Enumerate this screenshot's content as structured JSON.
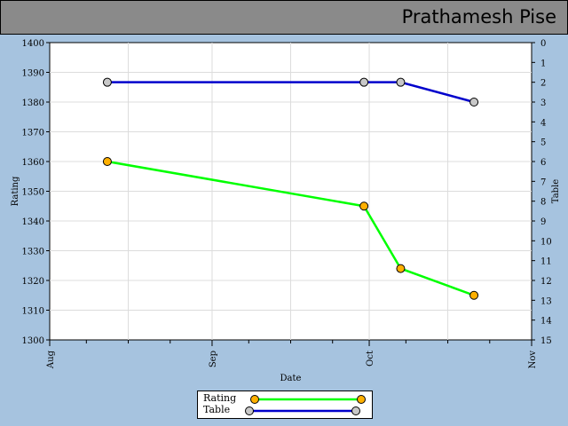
{
  "header": {
    "title": "Prathamesh Pise"
  },
  "chart_data": {
    "type": "line",
    "xlabel": "Date",
    "ylabel": "Rating",
    "y2label": "Table",
    "x_ticks": [
      "Aug",
      "Sep",
      "Oct",
      "Nov"
    ],
    "y_ticks": [
      1300,
      1310,
      1320,
      1330,
      1340,
      1350,
      1360,
      1370,
      1380,
      1390,
      1400
    ],
    "y2_ticks": [
      0,
      1,
      2,
      3,
      4,
      5,
      6,
      7,
      8,
      9,
      10,
      11,
      12,
      13,
      14,
      15
    ],
    "ylim": [
      1300,
      1400
    ],
    "y2lim": [
      0,
      15
    ],
    "xlim": [
      "2017-08-01",
      "2017-11-01"
    ],
    "grid": true,
    "legend_position": "bottom",
    "series": [
      {
        "name": "Rating",
        "axis": "left",
        "color": "#00ff00",
        "marker": "#ffb000",
        "x": [
          "2017-08-12",
          "2017-09-30",
          "2017-10-07",
          "2017-10-21"
        ],
        "y": [
          1360,
          1345,
          1324,
          1315
        ]
      },
      {
        "name": "Table",
        "axis": "right",
        "color": "#0000cc",
        "marker": "#c8c8c8",
        "x": [
          "2017-08-12",
          "2017-09-30",
          "2017-10-07",
          "2017-10-21"
        ],
        "y": [
          2,
          2,
          2,
          3
        ]
      }
    ]
  }
}
